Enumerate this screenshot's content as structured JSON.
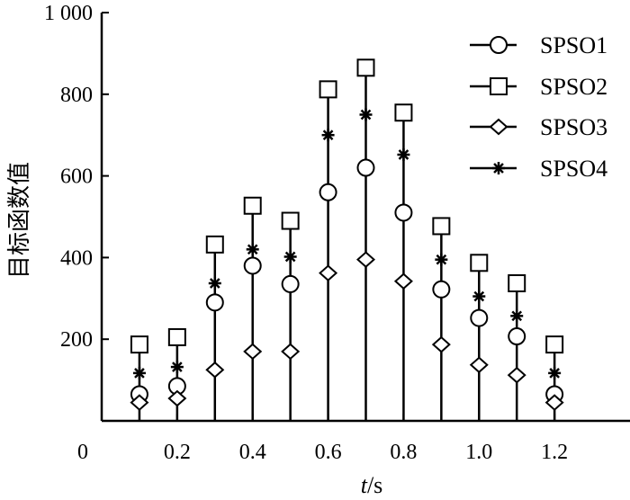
{
  "chart_data": {
    "type": "scatter",
    "style": "stem",
    "x": [
      0.1,
      0.2,
      0.3,
      0.4,
      0.5,
      0.6,
      0.7,
      0.8,
      0.9,
      1.0,
      1.1,
      1.2
    ],
    "xlim": [
      0,
      1.4
    ],
    "ylim": [
      0,
      1000
    ],
    "xticks": [
      0.2,
      0.4,
      0.6,
      0.8,
      1.0,
      1.2
    ],
    "xtick_labels": [
      "0.2",
      "0.4",
      "0.6",
      "0.8",
      "1.0",
      "1.2"
    ],
    "yticks": [
      200,
      400,
      600,
      800,
      1000
    ],
    "ytick_labels": [
      "200",
      "400",
      "600",
      "800",
      "1 000"
    ],
    "origin_label": "0",
    "xlabel_italic": "t",
    "xlabel_unit": "/s",
    "ylabel": "目标函数值",
    "legend_position": "top-right",
    "grid": false,
    "series": [
      {
        "name": "SPSO1",
        "marker": "circle",
        "values": [
          65,
          85,
          290,
          380,
          335,
          560,
          620,
          510,
          322,
          252,
          207,
          65
        ]
      },
      {
        "name": "SPSO2",
        "marker": "square",
        "values": [
          187,
          205,
          432,
          527,
          490,
          812,
          865,
          755,
          477,
          387,
          337,
          187
        ]
      },
      {
        "name": "SPSO3",
        "marker": "diamond",
        "values": [
          45,
          55,
          125,
          170,
          170,
          362,
          395,
          342,
          187,
          137,
          112,
          45
        ]
      },
      {
        "name": "SPSO4",
        "marker": "asterisk",
        "values": [
          117,
          132,
          337,
          420,
          402,
          700,
          750,
          652,
          395,
          305,
          257,
          117
        ]
      }
    ]
  }
}
